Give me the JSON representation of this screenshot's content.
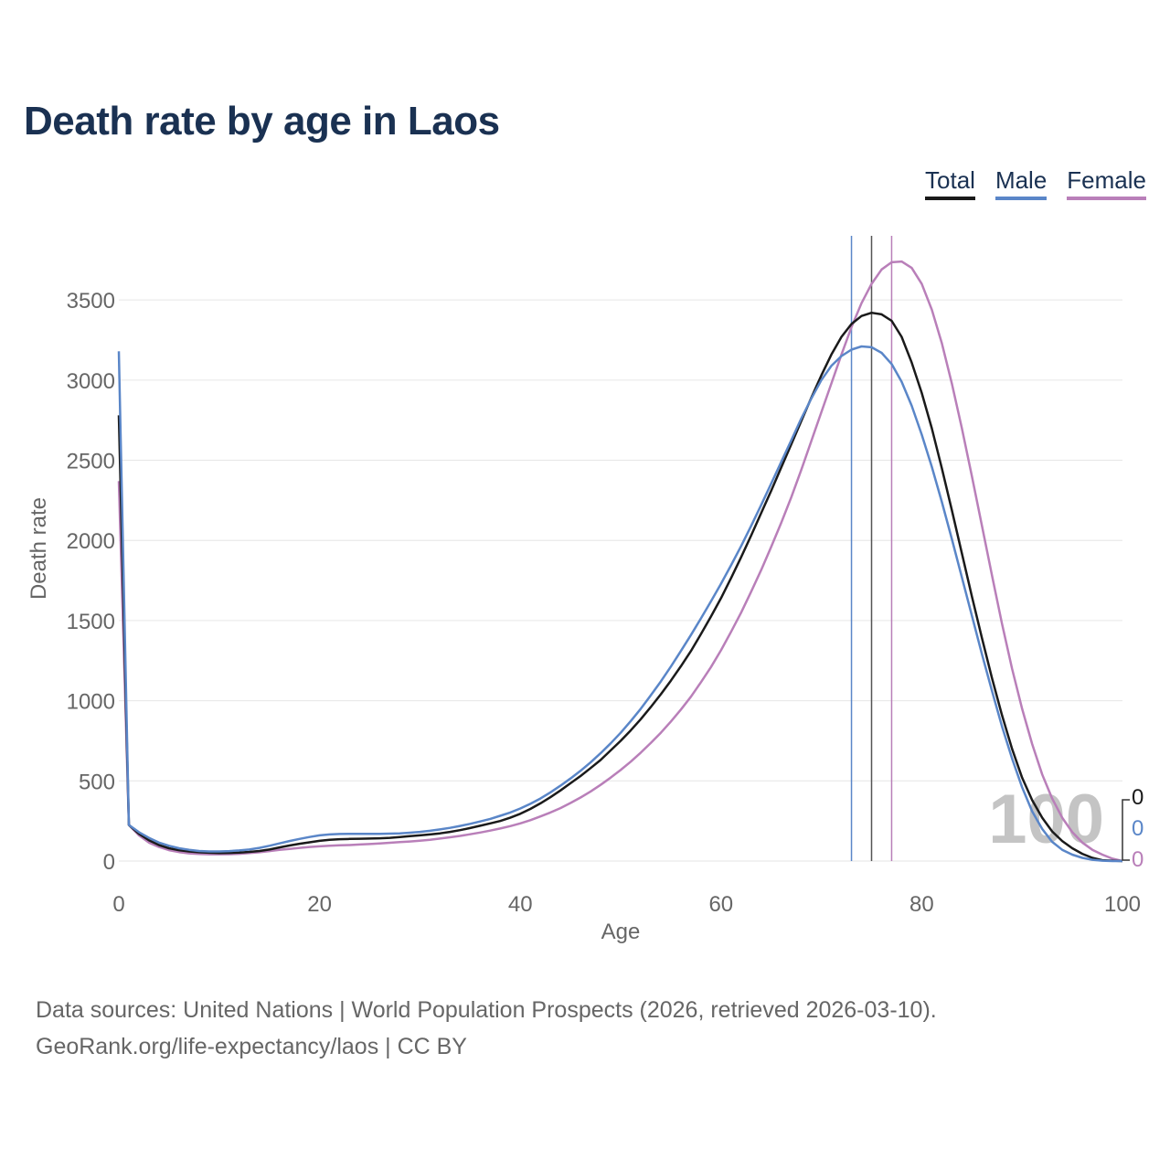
{
  "title": "Death rate by age in Laos",
  "legend": [
    {
      "label": "Total",
      "color": "#1a1a1a"
    },
    {
      "label": "Male",
      "color": "#5a86c8"
    },
    {
      "label": "Female",
      "color": "#b97fb9"
    }
  ],
  "footer": {
    "line1": "Data sources: United Nations | World Population Prospects (2026, retrieved 2026-03-10).",
    "line2": "GeoRank.org/life-expectancy/laos | CC BY"
  },
  "chart_data": {
    "type": "line",
    "xlabel": "Age",
    "ylabel": "Death rate",
    "xlim": [
      0,
      100
    ],
    "ylim": [
      0,
      3900
    ],
    "xticks": [
      0,
      20,
      40,
      60,
      80,
      100
    ],
    "yticks": [
      0,
      500,
      1000,
      1500,
      2000,
      2500,
      3000,
      3500
    ],
    "grid": true,
    "legend_position": "top-right",
    "watermark": "100",
    "end_labels": [
      "0",
      "0",
      "0"
    ],
    "x": [
      0,
      1,
      2,
      3,
      4,
      5,
      6,
      7,
      8,
      9,
      10,
      11,
      12,
      13,
      14,
      15,
      16,
      17,
      18,
      19,
      20,
      21,
      22,
      23,
      24,
      25,
      26,
      27,
      28,
      29,
      30,
      31,
      32,
      33,
      34,
      35,
      36,
      37,
      38,
      39,
      40,
      41,
      42,
      43,
      44,
      45,
      46,
      47,
      48,
      49,
      50,
      51,
      52,
      53,
      54,
      55,
      56,
      57,
      58,
      59,
      60,
      61,
      62,
      63,
      64,
      65,
      66,
      67,
      68,
      69,
      70,
      71,
      72,
      73,
      74,
      75,
      76,
      77,
      78,
      79,
      80,
      81,
      82,
      83,
      84,
      85,
      86,
      87,
      88,
      89,
      90,
      91,
      92,
      93,
      94,
      95,
      96,
      97,
      98,
      99,
      100
    ],
    "vlines": [
      {
        "series": "Male",
        "x": 73,
        "color": "#5a86c8"
      },
      {
        "series": "Total",
        "x": 75,
        "color": "#555555"
      },
      {
        "series": "Female",
        "x": 77,
        "color": "#b97fb9"
      }
    ],
    "series": [
      {
        "name": "Total",
        "color": "#1a1a1a",
        "values": [
          2780,
          225,
          170,
          130,
          100,
          80,
          68,
          60,
          55,
          52,
          50,
          51,
          53,
          57,
          63,
          72,
          85,
          97,
          108,
          117,
          126,
          132,
          136,
          138,
          139,
          140,
          142,
          145,
          150,
          155,
          160,
          166,
          173,
          182,
          193,
          206,
          220,
          235,
          250,
          270,
          295,
          325,
          360,
          398,
          440,
          485,
          530,
          580,
          630,
          690,
          750,
          815,
          885,
          960,
          1040,
          1125,
          1215,
          1310,
          1415,
          1525,
          1640,
          1765,
          1895,
          2030,
          2170,
          2310,
          2455,
          2600,
          2745,
          2890,
          3030,
          3160,
          3270,
          3350,
          3400,
          3420,
          3410,
          3370,
          3270,
          3110,
          2920,
          2700,
          2450,
          2190,
          1920,
          1650,
          1390,
          1140,
          910,
          700,
          520,
          380,
          270,
          185,
          125,
          80,
          45,
          20,
          5,
          2,
          0
        ],
        "end_x": [
          0,
          1,
          2,
          3,
          4,
          5,
          6,
          7,
          8,
          9,
          10,
          11,
          12,
          13,
          14,
          15,
          16,
          17,
          18,
          19,
          20,
          21,
          22,
          23,
          24,
          25,
          26,
          27,
          28,
          29,
          30,
          31,
          32,
          33,
          34,
          35,
          36,
          37,
          38,
          39,
          40,
          41,
          42,
          43,
          44,
          45,
          46,
          47,
          48,
          49,
          50,
          51,
          52,
          53,
          54,
          55,
          56,
          57,
          58,
          59,
          60,
          61,
          62,
          63,
          64,
          65,
          66,
          67,
          68,
          69,
          70,
          71,
          72,
          73,
          74,
          75,
          76,
          77,
          78,
          79,
          80,
          81,
          82,
          83,
          84,
          85,
          86,
          87,
          88,
          89,
          90,
          91,
          92,
          93,
          94,
          95,
          96,
          97,
          98,
          99,
          100
        ]
      }
    ]
  }
}
